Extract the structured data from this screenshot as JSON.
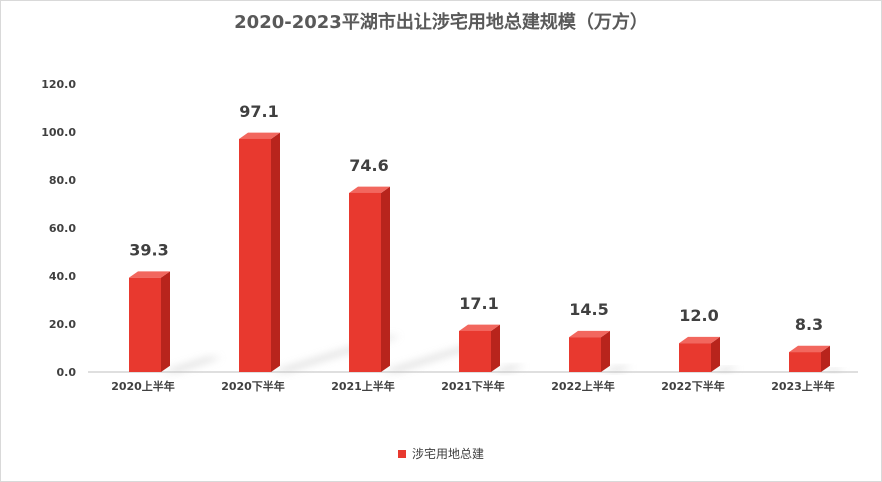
{
  "chart_data": {
    "type": "bar",
    "title": "2020-2023平湖市出让涉宅用地总建规模（万方）",
    "categories": [
      "2020上半年",
      "2020下半年",
      "2021上半年",
      "2021下半年",
      "2022上半年",
      "2022下半年",
      "2023上半年"
    ],
    "series": [
      {
        "name": "涉宅用地总建",
        "values": [
          39.3,
          97.1,
          74.6,
          17.1,
          14.5,
          12.0,
          8.3
        ]
      }
    ],
    "value_labels": [
      "39.3",
      "97.1",
      "74.6",
      "17.1",
      "14.5",
      "12.0",
      "8.3"
    ],
    "yticks": [
      "0.0",
      "20.0",
      "40.0",
      "60.0",
      "80.0",
      "100.0",
      "120.0"
    ],
    "ylim": [
      0,
      120
    ],
    "xlabel": "",
    "ylabel": "",
    "grid": false,
    "legend_position": "bottom",
    "colors": {
      "bar_front": "#e8392f",
      "bar_side": "#b8241c",
      "bar_top": "#f2675e",
      "axis": "#bfbfbf",
      "shadow": "#cfcfcf"
    }
  }
}
